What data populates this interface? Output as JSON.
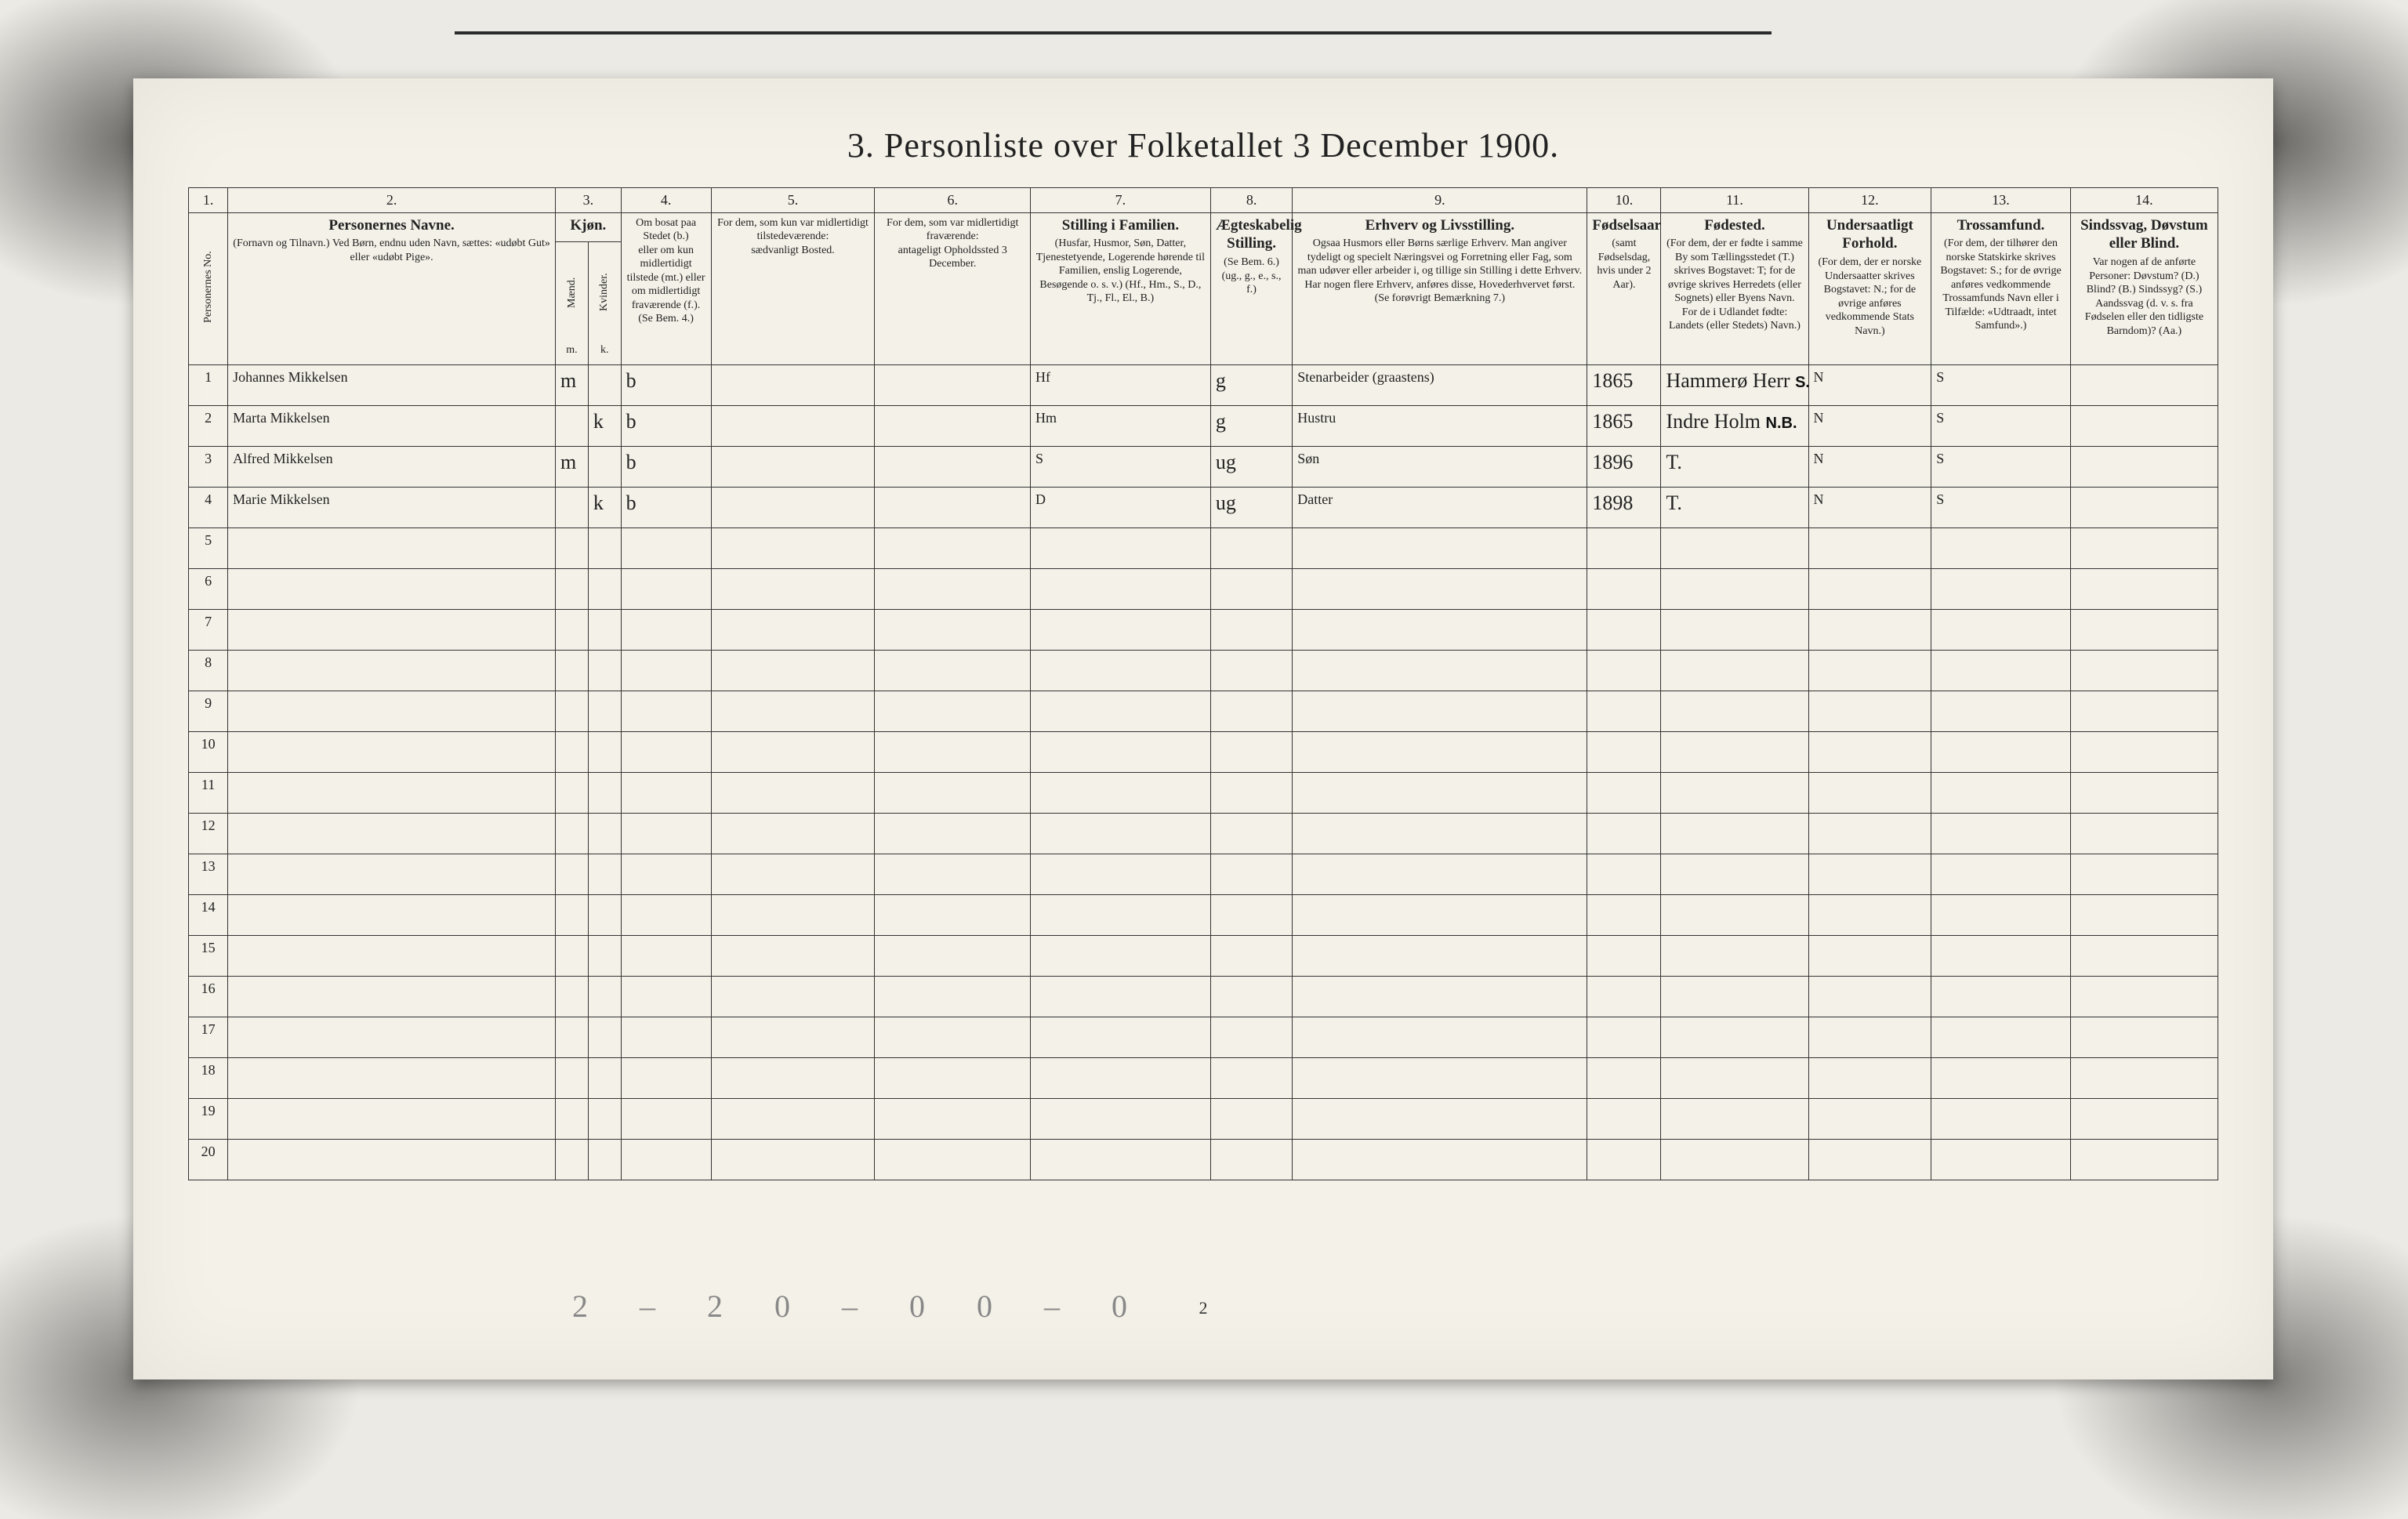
{
  "title": "3. Personliste over Folketallet 3 December 1900.",
  "footer_tally": "2 – 2    0 – 0    0 – 0",
  "footer_page": "2",
  "colors": {
    "paper": "#f4f1e8",
    "ink": "#222222",
    "handwriting": "#8a8a86",
    "border": "#333333",
    "scan_bg": "#eceae4"
  },
  "column_numbers": [
    "1.",
    "2.",
    "3.",
    "4.",
    "5.",
    "6.",
    "7.",
    "8.",
    "9.",
    "10.",
    "11.",
    "12.",
    "13.",
    "14."
  ],
  "headers": {
    "c1": "Personernes No.",
    "c2_title": "Personernes Navne.",
    "c2_sub": "(Fornavn og Tilnavn.)\nVed Børn, endnu uden Navn, sættes: «udøbt Gut» eller «udøbt Pige».",
    "c3_4_title": "Kjøn.",
    "c3": "Mænd.",
    "c4": "Kvinder.",
    "c3_4_foot": "m.  k.",
    "c_bosat_title": "Om bosat paa Stedet (b.)",
    "c_bosat_sub": "eller om kun midlertidigt tilstede (mt.) eller om midlertidigt fraværende (f.). (Se Bem. 4.)",
    "c5_title": "For dem, som kun var midlertidigt tilstedeværende:",
    "c5_sub": "sædvanligt Bosted.",
    "c6_title": "For dem, som var midlertidigt fraværende:",
    "c6_sub": "antageligt Opholdssted 3 December.",
    "c7_title": "Stilling i Familien.",
    "c7_sub": "(Husfar, Husmor, Søn, Datter, Tjenestetyende, Logerende hørende til Familien, enslig Logerende, Besøgende o. s. v.)\n(Hf., Hm., S., D., Tj., Fl., El., B.)",
    "c8_title": "Ægteskabelig Stilling.",
    "c8_sub": "(Se Bem. 6.)\n(ug., g., e., s., f.)",
    "c9_title": "Erhverv og Livsstilling.",
    "c9_sub": "Ogsaa Husmors eller Børns særlige Erhverv. Man angiver tydeligt og specielt Næringsvei og Forretning eller Fag, som man udøver eller arbeider i, og tillige sin Stilling i dette Erhverv. Har nogen flere Erhverv, anføres disse, Hovederhvervet først. (Se forøvrigt Bemærkning 7.)",
    "c10_title": "Fødselsaar",
    "c10_sub": "(samt Fødselsdag, hvis under 2 Aar).",
    "c11_title": "Fødested.",
    "c11_sub": "(For dem, der er fødte i samme By som Tællingsstedet (T.) skrives Bogstavet: T; for de øvrige skrives Herredets (eller Sognets) eller Byens Navn. For de i Udlandet fødte: Landets (eller Stedets) Navn.)",
    "c12_title": "Undersaatligt Forhold.",
    "c12_sub": "(For dem, der er norske Undersaatter skrives Bogstavet: N.; for de øvrige anføres vedkommende Stats Navn.)",
    "c13_title": "Trossamfund.",
    "c13_sub": "(For dem, der tilhører den norske Statskirke skrives Bogstavet: S.; for de øvrige anføres vedkommende Trossamfunds Navn eller i Tilfælde: «Udtraadt, intet Samfund».)",
    "c14_title": "Sindssvag, Døvstum eller Blind.",
    "c14_sub": "Var nogen af de anførte Personer:\nDøvstum? (D.)\nBlind? (B.)\nSindssyg? (S.)\nAandssvag (d. v. s. fra Fødselen eller den tidligste Barndom)? (Aa.)"
  },
  "rows": [
    {
      "no": "1",
      "name": "Johannes Mikkelsen",
      "m": "m",
      "k": "",
      "bosat": "b",
      "c5": "",
      "c6": "",
      "c7": "Hf",
      "c8": "g",
      "c9": "Stenarbeider (graastens)",
      "c10": "1865",
      "c11": "Hammerø Herr",
      "c11_stamp": "S.B.",
      "c12": "N",
      "c13": "S",
      "c14": ""
    },
    {
      "no": "2",
      "name": "Marta Mikkelsen",
      "m": "",
      "k": "k",
      "bosat": "b",
      "c5": "",
      "c6": "",
      "c7": "Hm",
      "c8": "g",
      "c9": "Hustru",
      "c10": "1865",
      "c11": "Indre Holm",
      "c11_stamp": "N.B.",
      "c12": "N",
      "c13": "S",
      "c14": ""
    },
    {
      "no": "3",
      "name": "Alfred Mikkelsen",
      "m": "m",
      "k": "",
      "bosat": "b",
      "c5": "",
      "c6": "",
      "c7": "S",
      "c8": "ug",
      "c9": "Søn",
      "c10": "1896",
      "c11": "T.",
      "c11_stamp": "",
      "c12": "N",
      "c13": "S",
      "c14": ""
    },
    {
      "no": "4",
      "name": "Marie Mikkelsen",
      "m": "",
      "k": "k",
      "bosat": "b",
      "c5": "",
      "c6": "",
      "c7": "D",
      "c8": "ug",
      "c9": "Datter",
      "c10": "1898",
      "c11": "T.",
      "c11_stamp": "",
      "c12": "N",
      "c13": "S",
      "c14": ""
    }
  ],
  "empty_rows": [
    "5",
    "6",
    "7",
    "8",
    "9",
    "10",
    "11",
    "12",
    "13",
    "14",
    "15",
    "16",
    "17",
    "18",
    "19",
    "20"
  ]
}
